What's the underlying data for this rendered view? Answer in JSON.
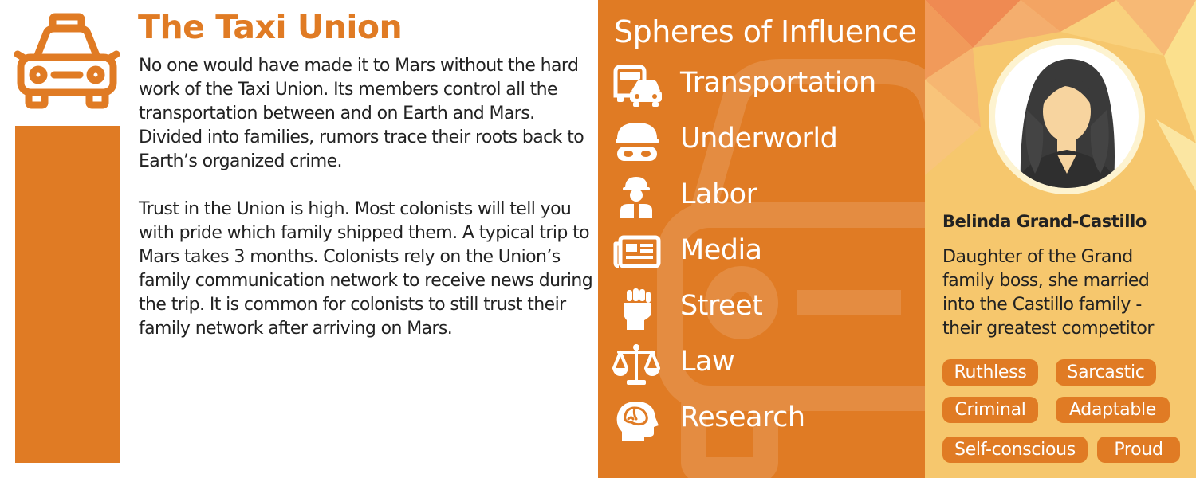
{
  "faction": {
    "title": "The Taxi Union",
    "icon": "taxi-icon",
    "paragraphs": [
      "No one would have made it to Mars without the hard work of the Taxi Union. Its members control all the transportation between and on Earth and Mars. Divided into families, rumors trace their roots back to Earth’s organized crime.",
      "Trust in the Union is high. Most colonists will tell you with pride which family shipped them. A typical trip to Mars takes 3 months. Colonists rely on the Union’s family communication network to receive news during the trip. It is common for colonists to still trust their family network after arriving on Mars."
    ]
  },
  "spheres": {
    "title": "Spheres of Influence",
    "items": [
      {
        "label": "Transportation",
        "icon": "bus-car-icon"
      },
      {
        "label": "Underworld",
        "icon": "masked-bandit-icon"
      },
      {
        "label": "Labor",
        "icon": "construction-worker-icon"
      },
      {
        "label": "Media",
        "icon": "newspaper-icon"
      },
      {
        "label": "Street",
        "icon": "raised-fist-icon"
      },
      {
        "label": "Law",
        "icon": "scales-icon"
      },
      {
        "label": "Research",
        "icon": "brain-head-icon"
      }
    ]
  },
  "character": {
    "name": "Belinda Grand-Castillo",
    "description": "Daughter of the Grand family boss, she married into the Castillo family - their greatest competitor",
    "traits": [
      "Ruthless",
      "Sarcastic",
      "Criminal",
      "Adaptable",
      "Self-conscious",
      "Proud"
    ]
  },
  "colors": {
    "accent": "#e07b24",
    "panel_right": "#f6c76d",
    "text": "#222222",
    "white": "#ffffff"
  }
}
